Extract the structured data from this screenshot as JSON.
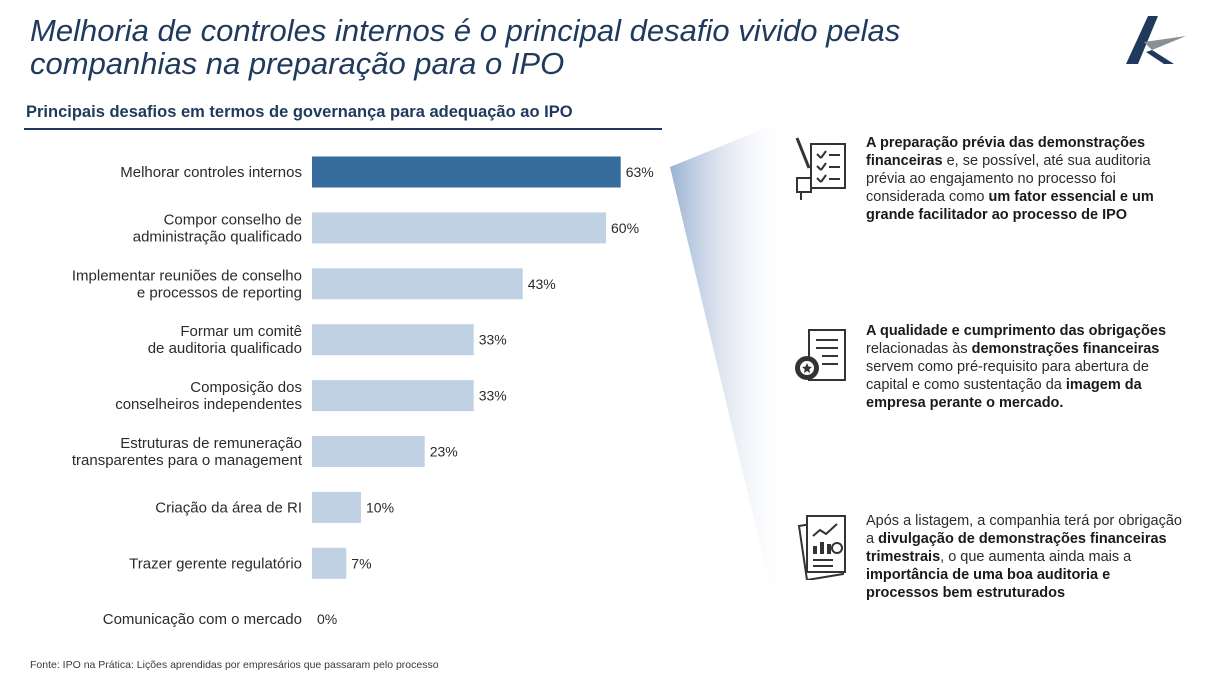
{
  "header": {
    "title_line1": "Melhoria de controles internos é o principal desafio vivido pelas",
    "title_line2": "companhias na preparação para o IPO",
    "logo_icon": "company-logo-icon"
  },
  "colors": {
    "highlight_bar": "#366b9e",
    "regular_bar": "#c1d1e4",
    "title": "#1f3a5c"
  },
  "chart_data": {
    "type": "bar",
    "orientation": "horizontal",
    "title": "Principais desafios em termos de governança para adequação ao IPO",
    "categories": [
      [
        "Melhorar controles internos"
      ],
      [
        "Compor conselho de",
        "administração qualificado"
      ],
      [
        "Implementar reuniões de conselho",
        "e processos de reporting"
      ],
      [
        "Formar um comitê",
        "de auditoria qualificado"
      ],
      [
        "Composição dos",
        "conselheiros independentes"
      ],
      [
        "Estruturas de remuneração",
        "transparentes para o management"
      ],
      [
        "Criação da área de RI"
      ],
      [
        "Trazer gerente regulatório"
      ],
      [
        "Comunicação com o mercado"
      ]
    ],
    "values": [
      63,
      60,
      43,
      33,
      33,
      23,
      10,
      7,
      0
    ],
    "value_labels": [
      "63%",
      "60%",
      "43%",
      "33%",
      "33%",
      "23%",
      "10%",
      "7%",
      "0%"
    ],
    "highlight_index": 0,
    "unit": "%",
    "xlim": [
      0,
      100
    ],
    "grid": false,
    "legend": "none"
  },
  "callouts": [
    {
      "icon": "checklist-icon",
      "segments": [
        {
          "t": "A preparação prévia das demonstrações financeiras",
          "b": true
        },
        {
          "t": " e, se possível, até sua auditoria prévia ao engajamento no processo foi considerada como ",
          "b": false
        },
        {
          "t": "um fator essencial e um grande facilitador ao processo de IPO",
          "b": true
        }
      ]
    },
    {
      "icon": "certificate-icon",
      "segments": [
        {
          "t": "A qualidade e cumprimento das obrigações",
          "b": true
        },
        {
          "t": " relacionadas às ",
          "b": false
        },
        {
          "t": "demonstrações financeiras",
          "b": true
        },
        {
          "t": " servem como pré-requisito para abertura de capital e como sustentação da ",
          "b": false
        },
        {
          "t": "imagem da empresa perante o mercado.",
          "b": true
        }
      ]
    },
    {
      "icon": "financial-report-icon",
      "segments": [
        {
          "t": "Após a listagem, a companhia terá por obrigação a ",
          "b": false
        },
        {
          "t": "divulgação de demonstrações financeiras trimestrais",
          "b": true
        },
        {
          "t": ", o que aumenta ainda mais a ",
          "b": false
        },
        {
          "t": "importância de uma boa auditoria e processos bem estruturados",
          "b": true
        }
      ]
    }
  ],
  "footer": {
    "source": "Fonte: IPO na Prática: Lições aprendidas por empresários que passaram pelo processo"
  }
}
